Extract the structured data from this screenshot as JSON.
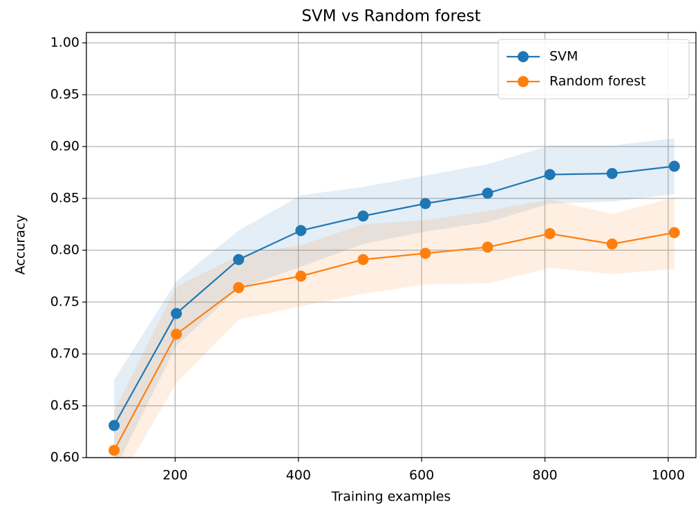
{
  "chart_data": {
    "type": "line",
    "title": "SVM vs Random forest",
    "x_label": "Training examples",
    "y_label": "Accuracy",
    "x": [
      101,
      202,
      303,
      404,
      505,
      606,
      707,
      808,
      909,
      1010
    ],
    "series": [
      {
        "name": "SVM",
        "color": "#1f77b4",
        "values": [
          0.631,
          0.739,
          0.791,
          0.819,
          0.833,
          0.845,
          0.855,
          0.873,
          0.874,
          0.881
        ],
        "upper": [
          0.675,
          0.77,
          0.819,
          0.853,
          0.861,
          0.872,
          0.883,
          0.901,
          0.901,
          0.908
        ],
        "lower": [
          0.587,
          0.708,
          0.763,
          0.784,
          0.806,
          0.818,
          0.827,
          0.845,
          0.847,
          0.854
        ]
      },
      {
        "name": "Random forest",
        "color": "#ff7f0e",
        "values": [
          0.607,
          0.719,
          0.764,
          0.775,
          0.791,
          0.797,
          0.803,
          0.816,
          0.806,
          0.817
        ],
        "upper": [
          0.645,
          0.765,
          0.795,
          0.805,
          0.825,
          0.829,
          0.838,
          0.849,
          0.835,
          0.851
        ],
        "lower": [
          0.569,
          0.672,
          0.733,
          0.746,
          0.758,
          0.767,
          0.768,
          0.783,
          0.777,
          0.782
        ]
      }
    ],
    "xlim": [
      56,
      1045
    ],
    "ylim": [
      0.6,
      1.01
    ],
    "xticks": [
      200,
      400,
      600,
      800,
      1000
    ],
    "yticks": [
      {
        "value": 0.6,
        "label": "0.60"
      },
      0.65,
      {
        "value": 0.7,
        "label": "0.70"
      },
      0.75,
      {
        "value": 0.8,
        "label": "0.80"
      },
      0.85,
      {
        "value": 0.9,
        "label": "0.90"
      },
      0.95,
      {
        "value": 1.0,
        "label": "1.00"
      }
    ],
    "grid": true,
    "legend": "upper right"
  }
}
